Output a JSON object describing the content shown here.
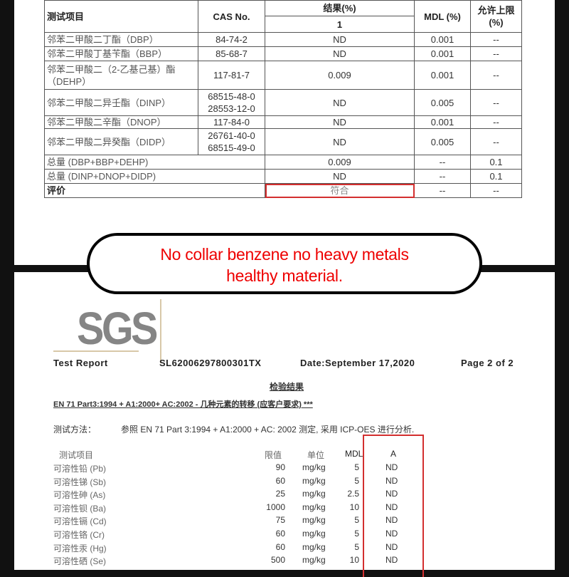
{
  "phthalate_table": {
    "headers": {
      "item": "测试项目",
      "cas": "CAS No.",
      "result": "结果(%)",
      "result_sub": "1",
      "mdl": "MDL (%)",
      "limit": "允许上限\n(%)"
    },
    "rows": [
      {
        "item": "邻苯二甲酸二丁酯（DBP）",
        "cas": "84-74-2",
        "result": "ND",
        "mdl": "0.001",
        "limit": "--"
      },
      {
        "item": "邻苯二甲酸丁基苄酯（BBP）",
        "cas": "85-68-7",
        "result": "ND",
        "mdl": "0.001",
        "limit": "--"
      },
      {
        "item": "邻苯二甲酸二（2-乙基己基）酯（DEHP）",
        "cas": "117-81-7",
        "result": "0.009",
        "mdl": "0.001",
        "limit": "--"
      },
      {
        "item": "邻苯二甲酸二异壬酯（DINP）",
        "cas": "68515-48-0\n28553-12-0",
        "result": "ND",
        "mdl": "0.005",
        "limit": "--"
      },
      {
        "item": "邻苯二甲酸二辛酯（DNOP）",
        "cas": "117-84-0",
        "result": "ND",
        "mdl": "0.001",
        "limit": "--"
      },
      {
        "item": "邻苯二甲酸二异癸酯（DIDP）",
        "cas": "26761-40-0\n68515-49-0",
        "result": "ND",
        "mdl": "0.005",
        "limit": "--"
      }
    ],
    "totals": [
      {
        "item": "总量 (DBP+BBP+DEHP)",
        "result": "0.009",
        "mdl": "--",
        "limit": "0.1"
      },
      {
        "item": "总量 (DINP+DNOP+DIDP)",
        "result": "ND",
        "mdl": "--",
        "limit": "0.1"
      }
    ],
    "evaluation": {
      "item": "评价",
      "result": "符合",
      "mdl": "--",
      "limit": "--"
    }
  },
  "banner": {
    "line1": "No collar benzene  no heavy metals",
    "line2": "healthy material."
  },
  "report": {
    "logo": "SGS",
    "title": "Test Report",
    "number": "SL62006297800301TX",
    "date": "Date:September 17,2020",
    "page": "Page 2 of 2",
    "section_title": "检验结果",
    "standard": "EN 71 Part3:1994 + A1:2000+ AC:2002 - 几种元素的转移 (应客户要求) ***",
    "method_label": "测试方法：",
    "method": "参照 EN 71 Part 3:1994 + A1:2000 + AC: 2002 测定, 采用 ICP-OES 进行分析.",
    "headers": {
      "item": "测试项目",
      "limit": "限值",
      "unit": "单位",
      "mdl": "MDL",
      "a": "A"
    },
    "rows": [
      {
        "item": "可溶性铅 (Pb)",
        "limit": "90",
        "unit": "mg/kg",
        "mdl": "5",
        "a": "ND"
      },
      {
        "item": "可溶性锑 (Sb)",
        "limit": "60",
        "unit": "mg/kg",
        "mdl": "5",
        "a": "ND"
      },
      {
        "item": "可溶性砷 (As)",
        "limit": "25",
        "unit": "mg/kg",
        "mdl": "2.5",
        "a": "ND"
      },
      {
        "item": "可溶性钡 (Ba)",
        "limit": "1000",
        "unit": "mg/kg",
        "mdl": "10",
        "a": "ND"
      },
      {
        "item": "可溶性镉 (Cd)",
        "limit": "75",
        "unit": "mg/kg",
        "mdl": "5",
        "a": "ND"
      },
      {
        "item": "可溶性铬 (Cr)",
        "limit": "60",
        "unit": "mg/kg",
        "mdl": "5",
        "a": "ND"
      },
      {
        "item": "可溶性汞 (Hg)",
        "limit": "60",
        "unit": "mg/kg",
        "mdl": "5",
        "a": "ND"
      },
      {
        "item": "可溶性硒 (Se)",
        "limit": "500",
        "unit": "mg/kg",
        "mdl": "10",
        "a": "ND"
      }
    ]
  },
  "colors": {
    "highlight": "#d32f2f",
    "banner_text": "#ee0000",
    "logo": "#858585"
  }
}
